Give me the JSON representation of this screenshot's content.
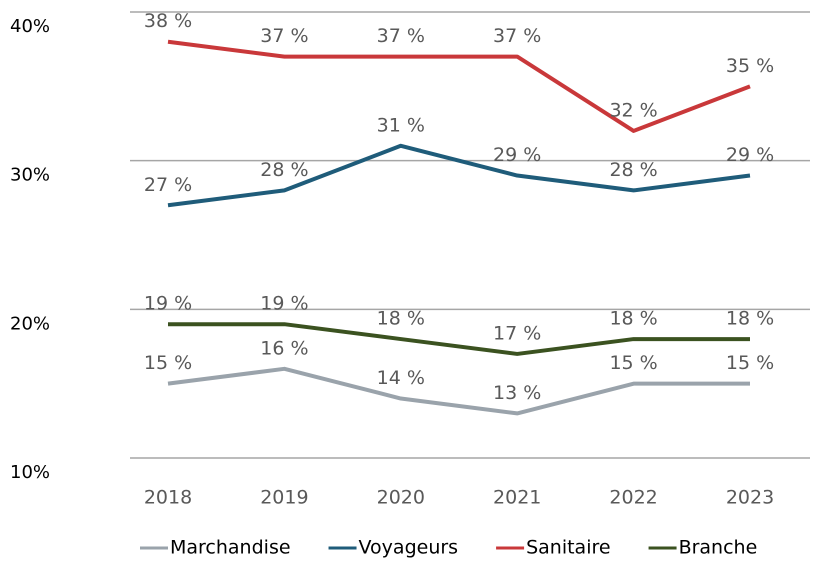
{
  "chart_data": {
    "type": "line",
    "categories": [
      "2018",
      "2019",
      "2020",
      "2021",
      "2022",
      "2023"
    ],
    "series": [
      {
        "name": "Marchandise",
        "color": "#9aa3ab",
        "values": [
          15,
          16,
          14,
          13,
          15,
          15
        ],
        "value_labels": [
          "15 %",
          "16 %",
          "14 %",
          "13 %",
          "15 %",
          "15 %"
        ]
      },
      {
        "name": "Voyageurs",
        "color": "#1f5c7a",
        "values": [
          27,
          28,
          31,
          29,
          28,
          29
        ],
        "value_labels": [
          "27 %",
          "28 %",
          "31 %",
          "29 %",
          "28 %",
          "29 %"
        ]
      },
      {
        "name": "Sanitaire",
        "color": "#c9383a",
        "values": [
          38,
          37,
          37,
          37,
          32,
          35
        ],
        "value_labels": [
          "38 %",
          "37 %",
          "37 %",
          "37 %",
          "32 %",
          "35 %"
        ]
      },
      {
        "name": "Branche",
        "color": "#3b5220",
        "values": [
          19,
          19,
          18,
          17,
          18,
          18
        ],
        "value_labels": [
          "19 %",
          "19 %",
          "18 %",
          "17 %",
          "18 %",
          "18 %"
        ]
      }
    ],
    "ylim": [
      10,
      40
    ],
    "yticks": [
      {
        "value": 10,
        "label": "10%"
      },
      {
        "value": 20,
        "label": "20%"
      },
      {
        "value": 30,
        "label": "30%"
      },
      {
        "value": 40,
        "label": "40%"
      }
    ],
    "grid": true,
    "legend": "bottom"
  }
}
